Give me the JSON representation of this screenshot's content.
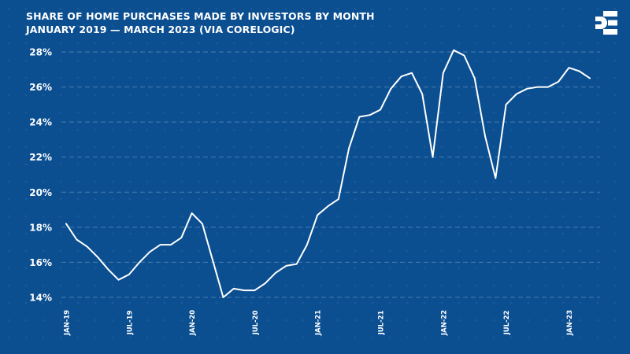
{
  "chart_data": {
    "type": "line",
    "title": "SHARE OF HOME PURCHASES MADE BY INVESTORS BY MONTH",
    "subtitle": "JANUARY 2019 — MARCH 2023 (VIA CORELOGIC)",
    "xlabel": "",
    "ylabel": "",
    "ylim": [
      14,
      28
    ],
    "yticks": [
      "14%",
      "16%",
      "18%",
      "20%",
      "22%",
      "24%",
      "26%",
      "28%"
    ],
    "ytick_values": [
      14,
      16,
      18,
      20,
      22,
      24,
      26,
      28
    ],
    "xticks": [
      "JAN-19",
      "JUL-19",
      "JAN-20",
      "JUL-20",
      "JAN-21",
      "JUL-21",
      "JAN-22",
      "JUL-22",
      "JAN-23"
    ],
    "xtick_index": [
      0,
      6,
      12,
      18,
      24,
      30,
      36,
      42,
      48
    ],
    "grid": true,
    "series": [
      {
        "name": "Investor share of home purchases (%)",
        "color": "#ffffff",
        "values": [
          18.2,
          17.3,
          16.9,
          16.3,
          15.6,
          15.0,
          15.3,
          16.0,
          16.6,
          17.0,
          17.0,
          17.4,
          18.8,
          18.2,
          16.1,
          14.0,
          14.5,
          14.4,
          14.4,
          14.8,
          15.4,
          15.8,
          15.9,
          17.0,
          18.7,
          19.2,
          19.6,
          22.5,
          24.3,
          24.4,
          24.7,
          25.9,
          26.6,
          26.8,
          25.6,
          22.0,
          26.8,
          28.1,
          27.8,
          26.5,
          23.2,
          20.8,
          25.0,
          25.6,
          25.9,
          26.0,
          26.0,
          26.3,
          27.1,
          26.9,
          26.5
        ]
      }
    ]
  },
  "brand": {
    "logo_icon": "bisnow-b-logo-icon",
    "background_color": "#0b4f91",
    "gridline_color": "#5f8dbb"
  }
}
